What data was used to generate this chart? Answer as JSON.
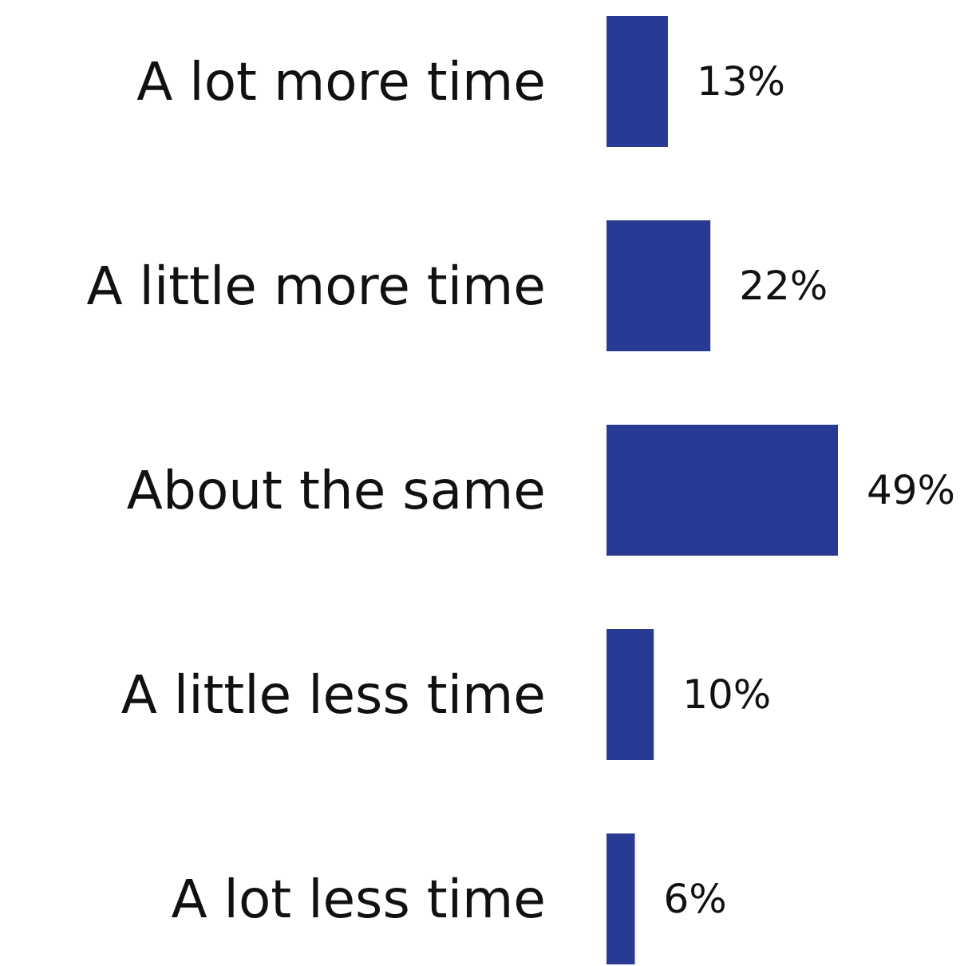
{
  "chart_data": {
    "type": "bar",
    "orientation": "horizontal",
    "categories": [
      "A lot more time",
      "A little more time",
      "About the same",
      "A little less time",
      "A lot less time"
    ],
    "values": [
      13,
      22,
      49,
      10,
      6
    ],
    "value_labels": [
      "13%",
      "22%",
      "49%",
      "10%",
      "6%"
    ],
    "color": "#283a93"
  }
}
